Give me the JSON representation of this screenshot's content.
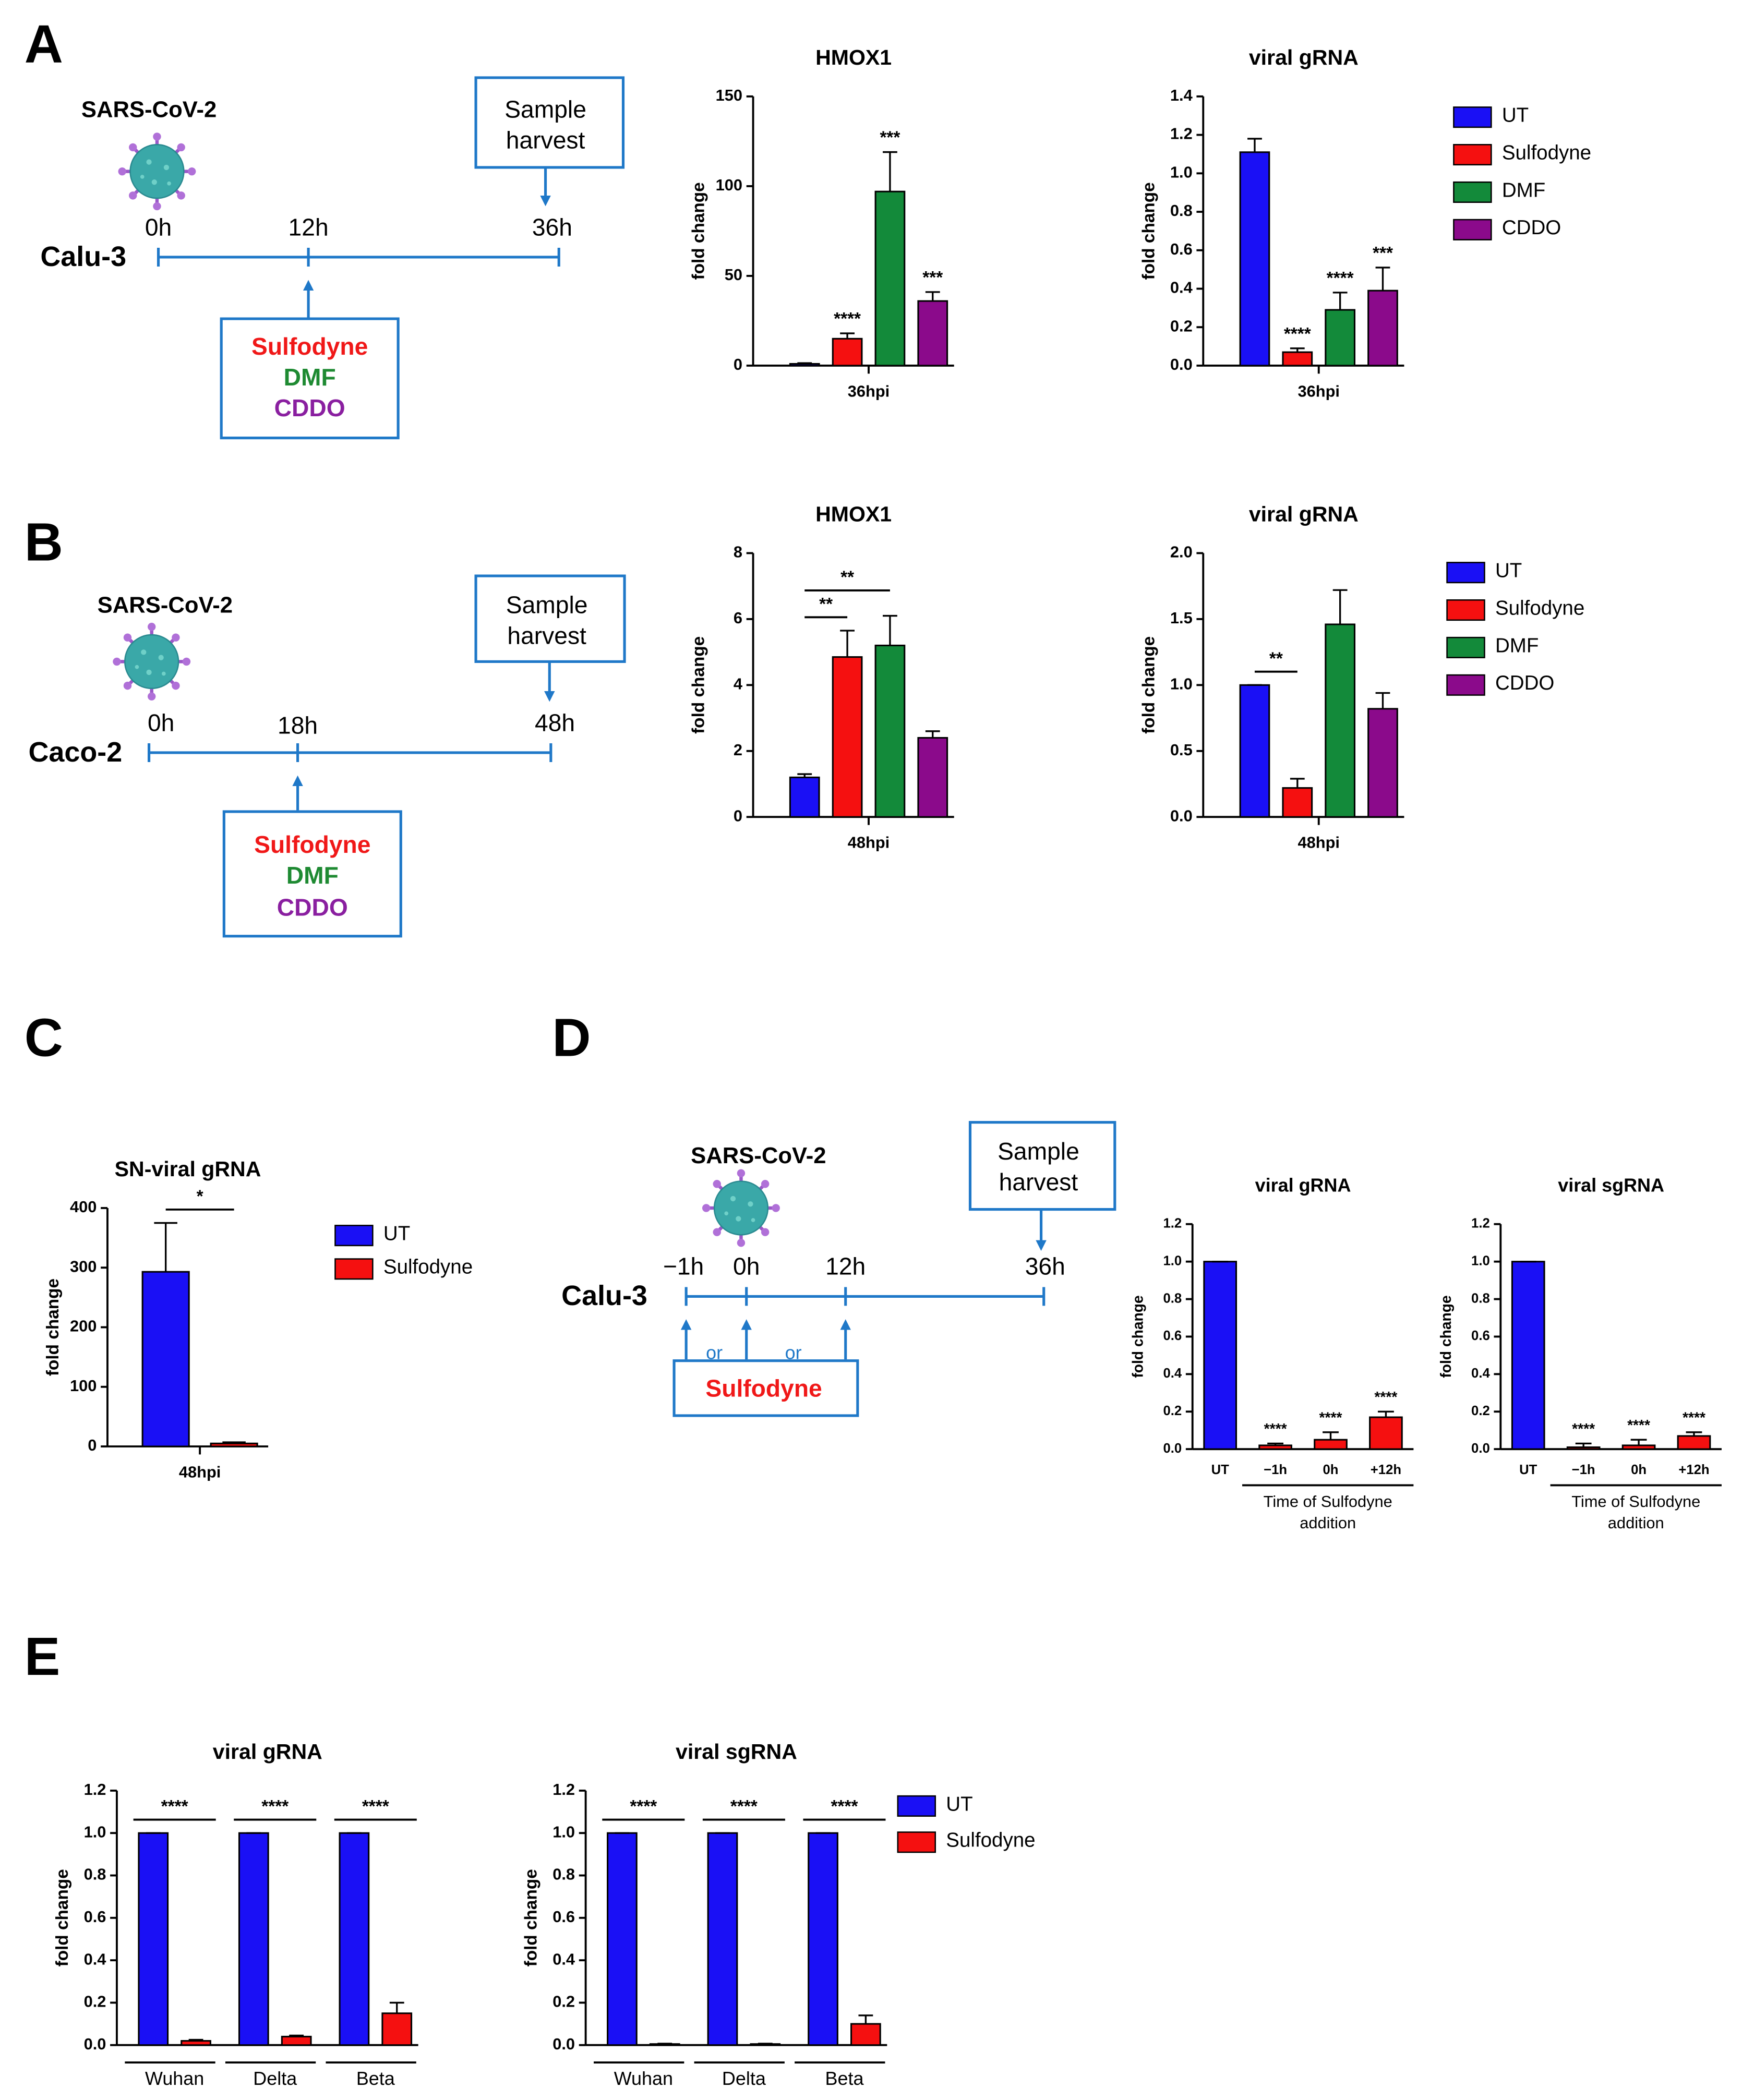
{
  "panels": [
    "A",
    "B",
    "C",
    "D",
    "E"
  ],
  "diagrams": [
    {
      "virus": "SARS-CoV-2",
      "cell": "Calu-3",
      "times": [
        "0h",
        "12h",
        "36h"
      ],
      "harvest": [
        "Sample",
        "harvest"
      ],
      "drugs": [
        "Sulfodyne",
        "DMF",
        "CDDO"
      ]
    },
    {
      "virus": "SARS-CoV-2",
      "cell": "Caco-2",
      "times": [
        "0h",
        "18h",
        "48h"
      ],
      "harvest": [
        "Sample",
        "harvest"
      ],
      "drugs": [
        "Sulfodyne",
        "DMF",
        "CDDO"
      ]
    },
    {
      "virus": "SARS-CoV-2",
      "cell": "Calu-3",
      "times": [
        "−1h",
        "0h",
        "12h",
        "36h"
      ],
      "harvest": [
        "Sample",
        "harvest"
      ],
      "or": [
        "or",
        "or"
      ],
      "drugs": [
        "Sulfodyne"
      ]
    }
  ],
  "chart_data": [
    {
      "type": "bar",
      "title": "HMOX1",
      "ylabel": "fold change",
      "categories": [
        "36hpi"
      ],
      "ylim": [
        0,
        150
      ],
      "yticks": [
        0,
        50,
        100,
        150
      ],
      "series": [
        {
          "name": "UT",
          "color": "#1a10f5",
          "values": [
            1
          ],
          "errors": [
            0.4
          ],
          "stars": [
            null
          ]
        },
        {
          "name": "Sulfodyne",
          "color": "#f51010",
          "values": [
            15
          ],
          "errors": [
            3
          ],
          "stars": [
            "****"
          ]
        },
        {
          "name": "DMF",
          "color": "#138a3a",
          "values": [
            97
          ],
          "errors": [
            22
          ],
          "stars": [
            "***"
          ]
        },
        {
          "name": "CDDO",
          "color": "#8b0a8b",
          "values": [
            36
          ],
          "errors": [
            5
          ],
          "stars": [
            "***"
          ]
        }
      ]
    },
    {
      "type": "bar",
      "title": "viral gRNA",
      "ylabel": "fold change",
      "categories": [
        "36hpi"
      ],
      "ylim": [
        0,
        1.4
      ],
      "yticks": [
        {
          "value": 0,
          "label": "0.0"
        },
        0.2,
        0.4,
        0.6,
        0.8,
        {
          "value": 1,
          "label": "1.0"
        },
        1.2,
        1.4
      ],
      "legend": "right",
      "series": [
        {
          "name": "UT",
          "color": "#1a10f5",
          "values": [
            1.11
          ],
          "errors": [
            0.07
          ],
          "stars": [
            null
          ]
        },
        {
          "name": "Sulfodyne",
          "color": "#f51010",
          "values": [
            0.07
          ],
          "errors": [
            0.02
          ],
          "stars": [
            "****"
          ]
        },
        {
          "name": "DMF",
          "color": "#138a3a",
          "values": [
            0.29
          ],
          "errors": [
            0.09
          ],
          "stars": [
            "****"
          ]
        },
        {
          "name": "CDDO",
          "color": "#8b0a8b",
          "values": [
            0.39
          ],
          "errors": [
            0.12
          ],
          "stars": [
            "***"
          ]
        }
      ]
    },
    {
      "type": "bar",
      "title": "HMOX1",
      "ylabel": "fold change",
      "categories": [
        "48hpi"
      ],
      "ylim": [
        0,
        8
      ],
      "yticks": [
        0,
        2,
        4,
        6,
        8
      ],
      "series": [
        {
          "name": "UT",
          "color": "#1a10f5",
          "values": [
            1.2
          ],
          "errors": [
            0.1
          ]
        },
        {
          "name": "Sulfodyne",
          "color": "#f51010",
          "values": [
            4.85
          ],
          "errors": [
            0.8
          ]
        },
        {
          "name": "DMF",
          "color": "#138a3a",
          "values": [
            5.2
          ],
          "errors": [
            0.9
          ]
        },
        {
          "name": "CDDO",
          "color": "#8b0a8b",
          "values": [
            2.4
          ],
          "errors": [
            0.2
          ]
        }
      ],
      "brackets": [
        {
          "text": "**",
          "between": [
            "UT",
            "Sulfodyne"
          ],
          "category": "48hpi"
        },
        {
          "text": "**",
          "between": [
            "UT",
            "DMF"
          ],
          "category": "48hpi"
        }
      ]
    },
    {
      "type": "bar",
      "title": "viral gRNA",
      "ylabel": "fold change",
      "categories": [
        "48hpi"
      ],
      "ylim": [
        0,
        2
      ],
      "yticks": [
        {
          "value": 0,
          "label": "0.0"
        },
        0.5,
        {
          "value": 1,
          "label": "1.0"
        },
        1.5,
        {
          "value": 2,
          "label": "2.0"
        }
      ],
      "legend": "right",
      "series": [
        {
          "name": "UT",
          "color": "#1a10f5",
          "values": [
            1.0
          ],
          "errors": [
            0
          ]
        },
        {
          "name": "Sulfodyne",
          "color": "#f51010",
          "values": [
            0.22
          ],
          "errors": [
            0.07
          ]
        },
        {
          "name": "DMF",
          "color": "#138a3a",
          "values": [
            1.46
          ],
          "errors": [
            0.26
          ]
        },
        {
          "name": "CDDO",
          "color": "#8b0a8b",
          "values": [
            0.82
          ],
          "errors": [
            0.12
          ]
        }
      ],
      "brackets": [
        {
          "text": "**",
          "between": [
            "UT",
            "Sulfodyne"
          ],
          "category": "48hpi"
        }
      ]
    },
    {
      "type": "bar",
      "title": "SN-viral gRNA",
      "ylabel": "fold change",
      "categories": [
        "48hpi"
      ],
      "ylim": [
        0,
        400
      ],
      "yticks": [
        0,
        100,
        200,
        300,
        400
      ],
      "legend": "right",
      "series": [
        {
          "name": "UT",
          "color": "#1a10f5",
          "values": [
            293
          ],
          "errors": [
            82
          ]
        },
        {
          "name": "Sulfodyne",
          "color": "#f51010",
          "values": [
            5
          ],
          "errors": [
            2
          ]
        }
      ],
      "brackets": [
        {
          "text": "*",
          "between": [
            "UT",
            "Sulfodyne"
          ],
          "category": "48hpi"
        }
      ]
    },
    {
      "type": "bar",
      "title": "viral gRNA",
      "ylabel": "fold change",
      "categories": [
        "UT",
        "−1h",
        "0h",
        "+12h"
      ],
      "xlabel": [
        "Time of Sulfodyne",
        "addition"
      ],
      "ylim": [
        0,
        1.2
      ],
      "yticks": [
        {
          "value": 0,
          "label": "0.0"
        },
        0.2,
        0.4,
        0.6,
        0.8,
        {
          "value": 1,
          "label": "1.0"
        },
        1.2
      ],
      "values": [
        1.0,
        0.02,
        0.05,
        0.17
      ],
      "errors": [
        0,
        0.01,
        0.04,
        0.03
      ],
      "stars": [
        null,
        "****",
        "****",
        "****"
      ],
      "colors": [
        "#1a10f5",
        "#f51010",
        "#f51010",
        "#f51010"
      ]
    },
    {
      "type": "bar",
      "title": "viral sgRNA",
      "ylabel": "fold change",
      "categories": [
        "UT",
        "−1h",
        "0h",
        "+12h"
      ],
      "xlabel": [
        "Time of Sulfodyne",
        "addition"
      ],
      "ylim": [
        0,
        1.2
      ],
      "yticks": [
        {
          "value": 0,
          "label": "0.0"
        },
        0.2,
        0.4,
        0.6,
        0.8,
        {
          "value": 1,
          "label": "1.0"
        },
        1.2
      ],
      "values": [
        1.0,
        0.01,
        0.02,
        0.07
      ],
      "errors": [
        0,
        0.02,
        0.03,
        0.02
      ],
      "stars": [
        null,
        "****",
        "****",
        "****"
      ],
      "colors": [
        "#1a10f5",
        "#f51010",
        "#f51010",
        "#f51010"
      ]
    },
    {
      "type": "bar",
      "title": "viral gRNA",
      "ylabel": "fold change",
      "categories": [
        "Wuhan",
        "Delta",
        "Beta"
      ],
      "ylim": [
        0,
        1.2
      ],
      "yticks": [
        {
          "value": 0,
          "label": "0.0"
        },
        0.2,
        0.4,
        0.6,
        0.8,
        {
          "value": 1,
          "label": "1.0"
        },
        1.2
      ],
      "series": [
        {
          "name": "UT",
          "color": "#1a10f5",
          "values": [
            1,
            1,
            1
          ],
          "errors": [
            0,
            0,
            0
          ]
        },
        {
          "name": "Sulfodyne",
          "color": "#f51010",
          "values": [
            0.02,
            0.04,
            0.15
          ],
          "errors": [
            0.005,
            0.005,
            0.05
          ]
        }
      ],
      "brackets": [
        {
          "text": "****",
          "between": [
            "UT",
            "Sulfodyne"
          ],
          "category": "Wuhan"
        },
        {
          "text": "****",
          "between": [
            "UT",
            "Sulfodyne"
          ],
          "category": "Delta"
        },
        {
          "text": "****",
          "between": [
            "UT",
            "Sulfodyne"
          ],
          "category": "Beta"
        }
      ]
    },
    {
      "type": "bar",
      "title": "viral sgRNA",
      "ylabel": "fold change",
      "categories": [
        "Wuhan",
        "Delta",
        "Beta"
      ],
      "legend": "right",
      "ylim": [
        0,
        1.2
      ],
      "yticks": [
        {
          "value": 0,
          "label": "0.0"
        },
        0.2,
        0.4,
        0.6,
        0.8,
        {
          "value": 1,
          "label": "1.0"
        },
        1.2
      ],
      "series": [
        {
          "name": "UT",
          "color": "#1a10f5",
          "values": [
            1,
            1,
            1
          ],
          "errors": [
            0,
            0,
            0
          ]
        },
        {
          "name": "Sulfodyne",
          "color": "#f51010",
          "values": [
            0.005,
            0.005,
            0.1
          ],
          "errors": [
            0.002,
            0.002,
            0.04
          ]
        }
      ],
      "brackets": [
        {
          "text": "****",
          "between": [
            "UT",
            "Sulfodyne"
          ],
          "category": "Wuhan"
        },
        {
          "text": "****",
          "between": [
            "UT",
            "Sulfodyne"
          ],
          "category": "Delta"
        },
        {
          "text": "****",
          "between": [
            "UT",
            "Sulfodyne"
          ],
          "category": "Beta"
        }
      ]
    }
  ]
}
